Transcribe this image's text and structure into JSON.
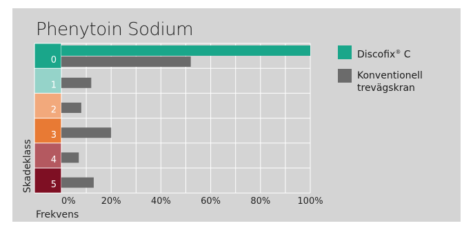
{
  "chart_data": {
    "type": "bar",
    "orientation": "horizontal",
    "title": "Phenytoin Sodium",
    "xlabel": "Frekvens",
    "ylabel": "Skadeklass",
    "xlim": [
      0,
      100
    ],
    "x_tick_labels": [
      "0%",
      "20%",
      "40%",
      "60%",
      "80%",
      "100%"
    ],
    "categories": [
      "0",
      "1",
      "2",
      "3",
      "4",
      "5"
    ],
    "category_colors": [
      "#1aa68a",
      "#95d3c9",
      "#f2a97c",
      "#e87a34",
      "#b45960",
      "#7e0f23"
    ],
    "series": [
      {
        "name": "Discofix® C",
        "color": "#1aa68a",
        "values": [
          100,
          0,
          0,
          0,
          0,
          0
        ]
      },
      {
        "name": "Konventionell trevägskran",
        "color": "#6b6b6b",
        "values": [
          52,
          12,
          8,
          20,
          7,
          13
        ]
      }
    ],
    "grid": true,
    "legend_position": "right"
  },
  "legend": {
    "discofix_text": "Discofix",
    "discofix_mark": "®",
    "discofix_suffix": " C",
    "konv_label": "Konventionell trevägskran"
  }
}
